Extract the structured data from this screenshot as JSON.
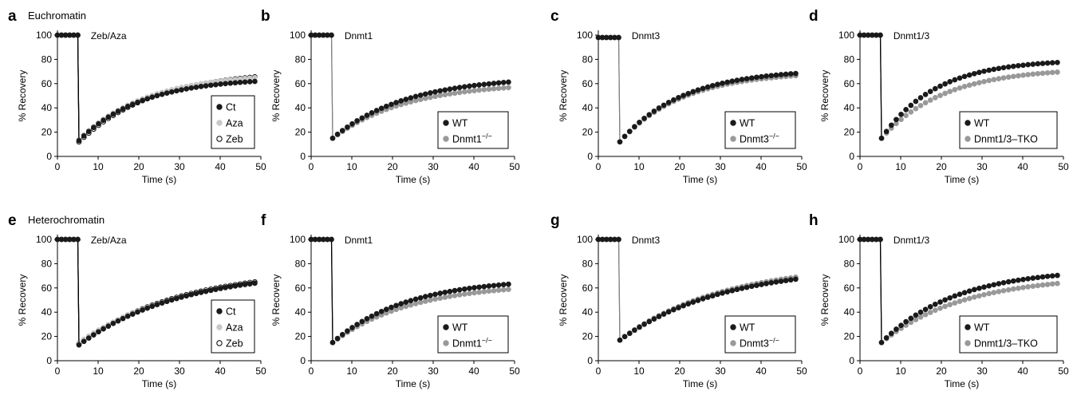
{
  "figure": {
    "panel_letters": [
      "a",
      "b",
      "c",
      "d",
      "e",
      "f",
      "g",
      "h"
    ],
    "row_titles": [
      "Euchromatin",
      "Heterochromatin"
    ]
  },
  "chart_data": [
    {
      "panel": "a",
      "type": "scatter",
      "section_title": "Euchromatin",
      "annotation": "Zeb/Aza",
      "xlabel": "Time (s)",
      "ylabel": "% Recovery",
      "xlim": [
        0,
        50
      ],
      "ylim": [
        0,
        100
      ],
      "xticks": [
        0,
        10,
        20,
        30,
        40,
        50
      ],
      "yticks": [
        0,
        20,
        40,
        60,
        80,
        100
      ],
      "legend_position": "lower-right",
      "line_color": "#000000",
      "series": [
        {
          "name": "Ct",
          "color": "#1a1a1a",
          "pre": 100,
          "drop": 13,
          "final": 65,
          "rate": 0.065
        },
        {
          "name": "Aza",
          "color": "#c8c8c8",
          "pre": 100,
          "drop": 14,
          "final": 69,
          "rate": 0.06
        },
        {
          "name": "Zeb",
          "color": "#ffffff",
          "pre": 100,
          "drop": 12,
          "final": 71,
          "rate": 0.055
        }
      ]
    },
    {
      "panel": "b",
      "type": "scatter",
      "section_title": "",
      "annotation": "Dnmt1",
      "xlabel": "Time (s)",
      "ylabel": "% Recovery",
      "xlim": [
        0,
        50
      ],
      "ylim": [
        0,
        100
      ],
      "xticks": [
        0,
        10,
        20,
        30,
        40,
        50
      ],
      "yticks": [
        0,
        20,
        40,
        60,
        80,
        100
      ],
      "legend_position": "lower-right",
      "line_color": "#808080",
      "series": [
        {
          "name": "WT",
          "sup": "",
          "color": "#1a1a1a",
          "pre": 100,
          "drop": 15,
          "final": 66,
          "rate": 0.055
        },
        {
          "name": "Dnmt1",
          "sup": "−/−",
          "color": "#999999",
          "pre": 100,
          "drop": 15,
          "final": 61,
          "rate": 0.055
        }
      ]
    },
    {
      "panel": "c",
      "type": "scatter",
      "section_title": "",
      "annotation": "Dnmt3",
      "xlabel": "Time (s)",
      "ylabel": "% Recovery",
      "xlim": [
        0,
        50
      ],
      "ylim": [
        0,
        100
      ],
      "xticks": [
        0,
        10,
        20,
        30,
        40,
        50
      ],
      "yticks": [
        0,
        20,
        40,
        60,
        80,
        100
      ],
      "legend_position": "lower-right",
      "line_color": "#808080",
      "series": [
        {
          "name": "WT",
          "sup": "",
          "color": "#1a1a1a",
          "pre": 98,
          "drop": 12,
          "final": 72,
          "rate": 0.065
        },
        {
          "name": "Dnmt3",
          "sup": "−/−",
          "color": "#999999",
          "pre": 98,
          "drop": 12,
          "final": 70,
          "rate": 0.065
        }
      ]
    },
    {
      "panel": "d",
      "type": "scatter",
      "section_title": "",
      "annotation": "Dnmt1/3",
      "xlabel": "Time (s)",
      "ylabel": "% Recovery",
      "xlim": [
        0,
        50
      ],
      "ylim": [
        0,
        100
      ],
      "xticks": [
        0,
        10,
        20,
        30,
        40,
        50
      ],
      "yticks": [
        0,
        20,
        40,
        60,
        80,
        100
      ],
      "legend_position": "lower-right",
      "line_color": "#000000",
      "series": [
        {
          "name": "WT",
          "sup": "",
          "color": "#1a1a1a",
          "pre": 100,
          "drop": 15,
          "final": 80,
          "rate": 0.075
        },
        {
          "name": "Dnmt1/3–TKO",
          "sup": "",
          "color": "#999999",
          "pre": 100,
          "drop": 15,
          "final": 73,
          "rate": 0.065
        }
      ]
    },
    {
      "panel": "e",
      "type": "scatter",
      "section_title": "Heterochromatin",
      "annotation": "Zeb/Aza",
      "xlabel": "Time (s)",
      "ylabel": "% Recovery",
      "xlim": [
        0,
        50
      ],
      "ylim": [
        0,
        100
      ],
      "xticks": [
        0,
        10,
        20,
        30,
        40,
        50
      ],
      "yticks": [
        0,
        20,
        40,
        60,
        80,
        100
      ],
      "legend_position": "lower-right",
      "line_color": "#000000",
      "series": [
        {
          "name": "Ct",
          "color": "#1a1a1a",
          "pre": 100,
          "drop": 13,
          "final": 75,
          "rate": 0.04
        },
        {
          "name": "Aza",
          "color": "#c8c8c8",
          "pre": 100,
          "drop": 15,
          "final": 74,
          "rate": 0.04
        },
        {
          "name": "Zeb",
          "color": "#ffffff",
          "pre": 100,
          "drop": 14,
          "final": 76,
          "rate": 0.04
        }
      ]
    },
    {
      "panel": "f",
      "type": "scatter",
      "section_title": "",
      "annotation": "Dnmt1",
      "xlabel": "Time (s)",
      "ylabel": "% Recovery",
      "xlim": [
        0,
        50
      ],
      "ylim": [
        0,
        100
      ],
      "xticks": [
        0,
        10,
        20,
        30,
        40,
        50
      ],
      "yticks": [
        0,
        20,
        40,
        60,
        80,
        100
      ],
      "legend_position": "lower-right",
      "line_color": "#000000",
      "series": [
        {
          "name": "WT",
          "sup": "",
          "color": "#1a1a1a",
          "pre": 100,
          "drop": 15,
          "final": 68,
          "rate": 0.055
        },
        {
          "name": "Dnmt1",
          "sup": "−/−",
          "color": "#999999",
          "pre": 100,
          "drop": 15,
          "final": 64,
          "rate": 0.052
        }
      ]
    },
    {
      "panel": "g",
      "type": "scatter",
      "section_title": "",
      "annotation": "Dnmt3",
      "xlabel": "Time (s)",
      "ylabel": "% Recovery",
      "xlim": [
        0,
        50
      ],
      "ylim": [
        0,
        100
      ],
      "xticks": [
        0,
        10,
        20,
        30,
        40,
        50
      ],
      "yticks": [
        0,
        20,
        40,
        60,
        80,
        100
      ],
      "legend_position": "lower-right",
      "line_color": "#808080",
      "series": [
        {
          "name": "WT",
          "sup": "",
          "color": "#1a1a1a",
          "pre": 100,
          "drop": 17,
          "final": 78,
          "rate": 0.04
        },
        {
          "name": "Dnmt3",
          "sup": "−/−",
          "color": "#999999",
          "pre": 100,
          "drop": 17,
          "final": 80,
          "rate": 0.04
        }
      ]
    },
    {
      "panel": "h",
      "type": "scatter",
      "section_title": "",
      "annotation": "Dnmt1/3",
      "xlabel": "Time (s)",
      "ylabel": "% Recovery",
      "xlim": [
        0,
        50
      ],
      "ylim": [
        0,
        100
      ],
      "xticks": [
        0,
        10,
        20,
        30,
        40,
        50
      ],
      "yticks": [
        0,
        20,
        40,
        60,
        80,
        100
      ],
      "legend_position": "lower-right",
      "line_color": "#000000",
      "series": [
        {
          "name": "WT",
          "sup": "",
          "color": "#1a1a1a",
          "pre": 100,
          "drop": 15,
          "final": 76,
          "rate": 0.055
        },
        {
          "name": "Dnmt1/3–TKO",
          "sup": "",
          "color": "#999999",
          "pre": 100,
          "drop": 15,
          "final": 70,
          "rate": 0.05
        }
      ]
    }
  ]
}
